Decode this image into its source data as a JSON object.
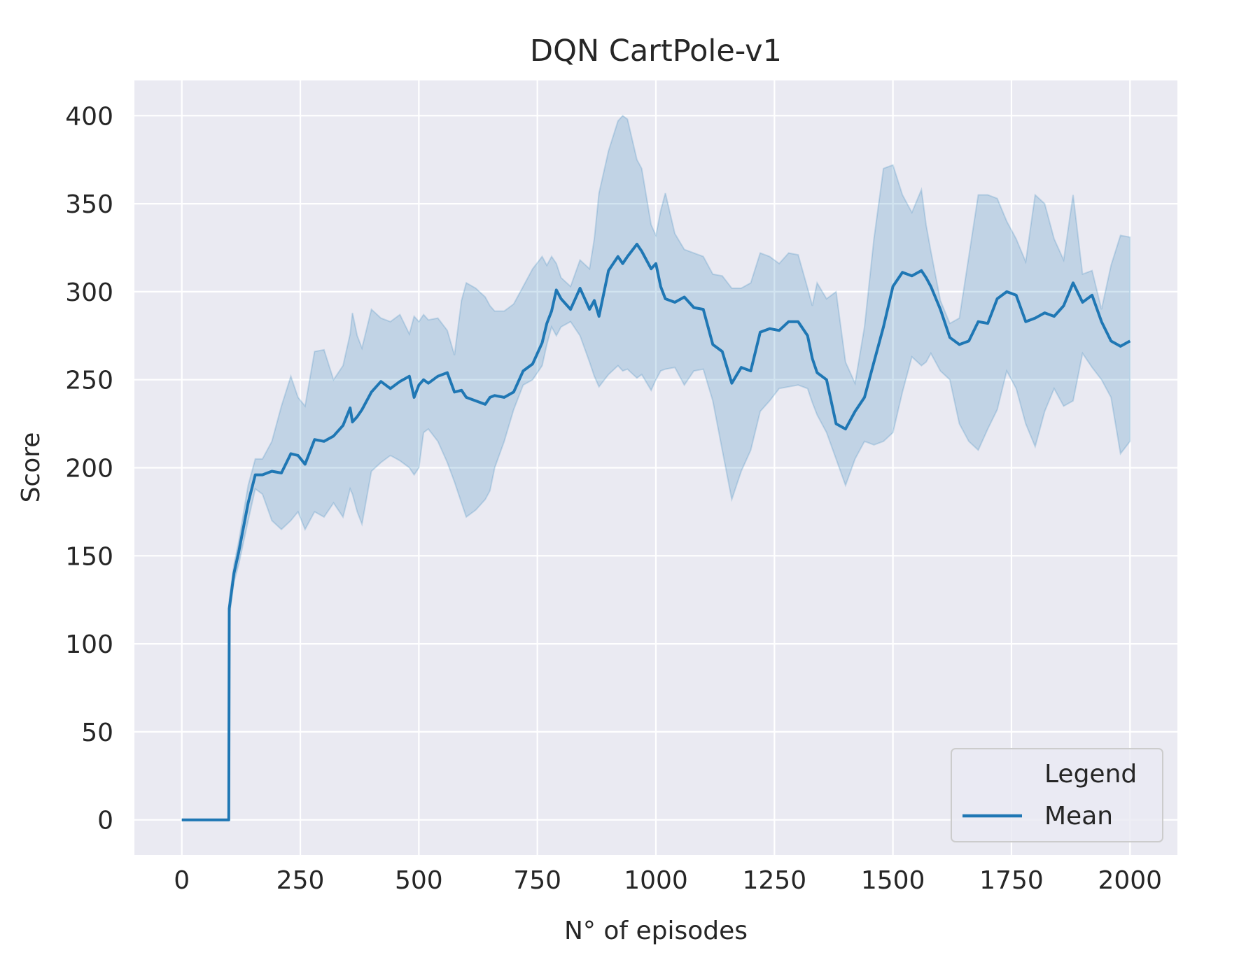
{
  "chart_data": {
    "type": "line",
    "title": "DQN CartPole-v1",
    "xlabel": "N° of episodes",
    "ylabel": "Score",
    "xlim": [
      -100,
      2100
    ],
    "ylim": [
      -20,
      420
    ],
    "xticks": [
      0,
      250,
      500,
      750,
      1000,
      1250,
      1500,
      1750,
      2000
    ],
    "yticks": [
      0,
      50,
      100,
      150,
      200,
      250,
      300,
      350,
      400
    ],
    "grid": true,
    "legend": {
      "title": "Legend",
      "placement": "bottom-right",
      "entries": [
        "Mean"
      ]
    },
    "colors": {
      "line": "#1f77b4",
      "band": "#1f77b4",
      "background": "#eaeaf2",
      "grid": "#ffffff"
    },
    "series": [
      {
        "name": "Mean",
        "x": [
          0,
          98,
          99,
          100,
          110,
          120,
          140,
          155,
          170,
          190,
          210,
          230,
          245,
          260,
          280,
          300,
          320,
          340,
          355,
          360,
          370,
          380,
          400,
          420,
          440,
          460,
          480,
          490,
          500,
          510,
          520,
          540,
          560,
          575,
          590,
          600,
          620,
          640,
          650,
          660,
          680,
          700,
          720,
          740,
          760,
          770,
          780,
          790,
          800,
          820,
          840,
          860,
          870,
          880,
          900,
          920,
          930,
          940,
          960,
          970,
          990,
          1000,
          1010,
          1020,
          1040,
          1060,
          1080,
          1100,
          1120,
          1140,
          1160,
          1180,
          1200,
          1220,
          1240,
          1260,
          1280,
          1300,
          1320,
          1330,
          1340,
          1360,
          1380,
          1400,
          1420,
          1440,
          1460,
          1480,
          1500,
          1520,
          1540,
          1560,
          1570,
          1580,
          1600,
          1620,
          1640,
          1660,
          1680,
          1700,
          1720,
          1740,
          1760,
          1780,
          1800,
          1820,
          1840,
          1860,
          1880,
          1900,
          1920,
          1940,
          1960,
          1980,
          2000
        ],
        "values": [
          0,
          0,
          0,
          120,
          140,
          152,
          180,
          196,
          196,
          198,
          197,
          208,
          207,
          202,
          216,
          215,
          218,
          224,
          234,
          226,
          229,
          233,
          243,
          249,
          245,
          249,
          252,
          240,
          247,
          250,
          248,
          252,
          254,
          243,
          244,
          240,
          238,
          236,
          240,
          241,
          240,
          243,
          255,
          259,
          271,
          282,
          289,
          301,
          296,
          290,
          302,
          290,
          295,
          286,
          312,
          320,
          316,
          320,
          327,
          323,
          313,
          316,
          303,
          296,
          294,
          297,
          291,
          290,
          270,
          266,
          248,
          257,
          255,
          277,
          279,
          278,
          283,
          283,
          275,
          262,
          254,
          250,
          225,
          222,
          232,
          240,
          260,
          280,
          303,
          311,
          309,
          312,
          308,
          303,
          290,
          274,
          270,
          272,
          283,
          282,
          296,
          300,
          298,
          283,
          285,
          288,
          286,
          292,
          305,
          294,
          298,
          283,
          272,
          269,
          272
        ],
        "upper": [
          0,
          0,
          0,
          125,
          145,
          158,
          190,
          205,
          205,
          215,
          235,
          252,
          240,
          235,
          266,
          267,
          250,
          258,
          276,
          288,
          275,
          268,
          290,
          285,
          283,
          287,
          276,
          286,
          283,
          287,
          284,
          285,
          278,
          264,
          295,
          305,
          302,
          297,
          292,
          289,
          289,
          293,
          303,
          313,
          320,
          315,
          320,
          316,
          308,
          303,
          318,
          313,
          330,
          356,
          380,
          397,
          400,
          398,
          375,
          370,
          338,
          332,
          346,
          356,
          333,
          324,
          322,
          320,
          310,
          309,
          302,
          302,
          305,
          322,
          320,
          316,
          322,
          321,
          302,
          292,
          305,
          296,
          300,
          260,
          248,
          280,
          330,
          370,
          372,
          355,
          345,
          358,
          338,
          323,
          295,
          282,
          285,
          320,
          355,
          355,
          353,
          340,
          330,
          317,
          355,
          350,
          330,
          318,
          355,
          310,
          312,
          290,
          315,
          332,
          331
        ],
        "lower": [
          0,
          0,
          0,
          115,
          135,
          145,
          170,
          188,
          185,
          170,
          165,
          170,
          175,
          165,
          175,
          172,
          180,
          172,
          188,
          185,
          175,
          168,
          198,
          203,
          207,
          204,
          200,
          196,
          200,
          220,
          222,
          215,
          203,
          192,
          180,
          172,
          176,
          182,
          187,
          200,
          215,
          233,
          247,
          250,
          258,
          270,
          280,
          275,
          280,
          283,
          275,
          260,
          252,
          246,
          253,
          258,
          255,
          256,
          251,
          253,
          244,
          250,
          255,
          256,
          257,
          247,
          255,
          256,
          238,
          210,
          182,
          198,
          210,
          232,
          238,
          245,
          246,
          247,
          245,
          237,
          230,
          220,
          205,
          190,
          205,
          215,
          213,
          215,
          220,
          243,
          263,
          258,
          260,
          265,
          255,
          250,
          225,
          215,
          210,
          222,
          233,
          255,
          245,
          225,
          212,
          232,
          245,
          235,
          238,
          265,
          257,
          250,
          240,
          208,
          215
        ]
      }
    ]
  }
}
